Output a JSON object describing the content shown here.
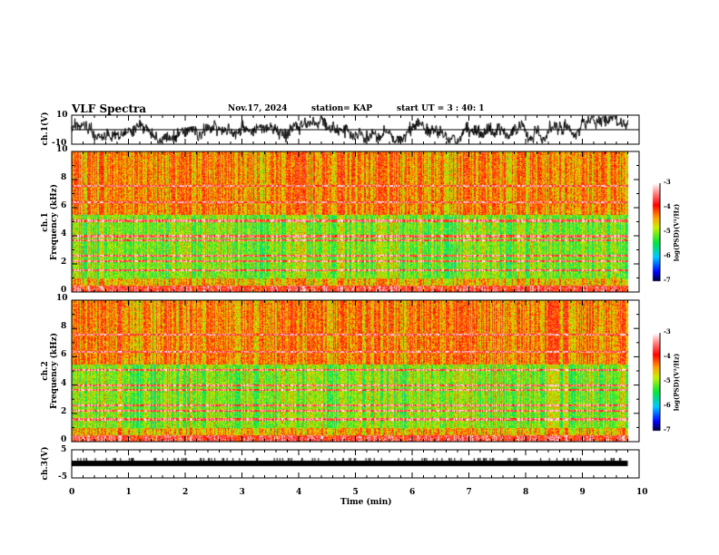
{
  "header": {
    "title": "VLF Spectra",
    "date": "Nov.17, 2024",
    "station": "station= KAP",
    "start": "start  UT =   3  : 40: 1"
  },
  "panels": {
    "ch1": {
      "ylabel": "ch.1(V)",
      "ymax": "10",
      "ymin": "-10"
    },
    "spec1": {
      "ylabel": "ch.1\nFrequency (kHz)",
      "ylabel_a": "ch.1",
      "ylabel_b": "Frequency  (kHz)",
      "ticks": [
        "0",
        "2",
        "4",
        "6",
        "8",
        "10"
      ]
    },
    "spec2": {
      "ylabel_a": "ch.2",
      "ylabel_b": "Frequency  (kHz)",
      "ticks": [
        "0",
        "2",
        "4",
        "6",
        "8",
        "10"
      ]
    },
    "ch3": {
      "ylabel": "ch.3(V)",
      "ymax": "5",
      "ymin": "-5"
    }
  },
  "colorbar": {
    "label": "log(PSD)(V²/Hz)",
    "ticks": [
      "-3",
      "-4",
      "-5",
      "-6",
      "-7"
    ]
  },
  "chart_data": {
    "type": "heatmap",
    "xlabel": "Time  (min)",
    "xticks": [
      "0",
      "1",
      "2",
      "3",
      "4",
      "5",
      "6",
      "7",
      "8",
      "9",
      "10"
    ],
    "xlim": [
      0,
      10
    ],
    "data_end_min": 9.8,
    "frequency_range_khz": [
      0,
      10
    ],
    "color_range_logpsd": [
      -7,
      -3
    ],
    "ch1_range_v": [
      -10,
      10
    ],
    "ch3_range_v": [
      -5,
      5
    ],
    "ch3_level_v": -0.5
  }
}
